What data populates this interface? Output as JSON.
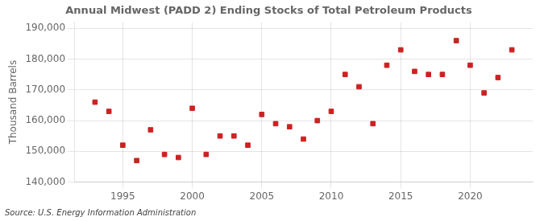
{
  "chart_data": {
    "type": "scatter",
    "title": "Annual Midwest (PADD 2) Ending Stocks of Total Petroleum Products",
    "ylabel": "Thousand Barrels",
    "annotations": [
      "Source: U.S. Energy Information Administration"
    ],
    "x": [
      1993,
      1994,
      1995,
      1996,
      1997,
      1998,
      1999,
      2000,
      2001,
      2002,
      2003,
      2004,
      2005,
      2006,
      2007,
      2008,
      2009,
      2010,
      2011,
      2012,
      2013,
      2014,
      2015,
      2016,
      2017,
      2018,
      2019,
      2020,
      2021,
      2022,
      2023
    ],
    "values": [
      166000,
      163000,
      152000,
      147000,
      157000,
      149000,
      148000,
      164000,
      149000,
      155000,
      155000,
      152000,
      162000,
      159000,
      158000,
      154000,
      160000,
      163000,
      175000,
      171000,
      159000,
      178000,
      183000,
      176000,
      175000,
      175000,
      186000,
      178000,
      169000,
      174000,
      183000
    ],
    "color": "#cc2222",
    "marker": "square",
    "xlim": [
      1991.5,
      2024.5
    ],
    "xticks": [
      {
        "value": 1995,
        "label": "1995"
      },
      {
        "value": 2000,
        "label": "2000"
      },
      {
        "value": 2005,
        "label": "2005"
      },
      {
        "value": 2010,
        "label": "2010"
      },
      {
        "value": 2015,
        "label": "2015"
      },
      {
        "value": 2020,
        "label": "2020"
      }
    ],
    "ylim": [
      140000,
      192000
    ],
    "yticks": [
      {
        "value": 140000,
        "label": "140,000"
      },
      {
        "value": 150000,
        "label": "150,000"
      },
      {
        "value": 160000,
        "label": "160,000"
      },
      {
        "value": 170000,
        "label": "170,000"
      },
      {
        "value": 180000,
        "label": "180,000"
      },
      {
        "value": 190000,
        "label": "190,000"
      }
    ],
    "grid": true
  }
}
